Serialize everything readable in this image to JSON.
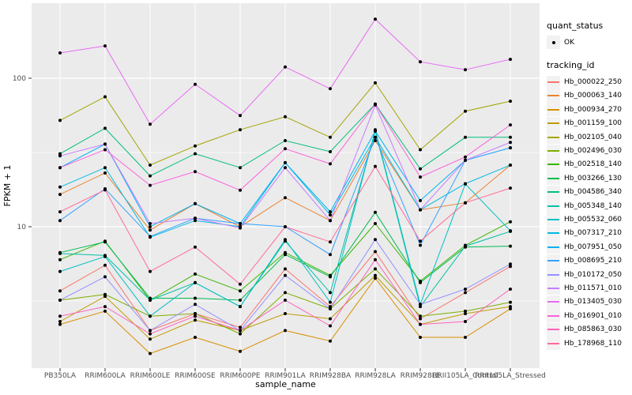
{
  "chart_data": {
    "type": "line",
    "title": "",
    "xlabel": "sample_name",
    "ylabel": "FPKM + 1",
    "y_scale": "log10",
    "ylim": [
      1.12,
      320
    ],
    "y_ticks": [
      {
        "value": 10,
        "label": "10"
      },
      {
        "value": 100,
        "label": "100"
      }
    ],
    "y_minor": [
      3.162,
      31.62
    ],
    "grid": "on",
    "panel_color": "#EBEBEB",
    "grid_color": "#FFFFFF",
    "axis_text_color": "#4D4D4D",
    "point_color": "#000000",
    "legend_position": "right",
    "categories": [
      "PB350LA",
      "RRIM600LA",
      "RRIM600LE",
      "RRIM600SE",
      "RRIM600PE",
      "RRIM901LA",
      "RRIM928BA",
      "RRIM928LA",
      "RRIM928LE",
      "RRII105LA_Control",
      "RRII105LA_Stressed"
    ],
    "legend": {
      "quant_status": {
        "title": "quant_status",
        "items": [
          {
            "label": "OK"
          }
        ]
      },
      "tracking_id": {
        "title": "tracking_id"
      }
    },
    "series": [
      {
        "name": "Hb_000022_250",
        "color": "#F8766D",
        "values": [
          3.7,
          5.5,
          2.0,
          2.6,
          2.1,
          5.2,
          2.9,
          6.8,
          2.4,
          3.6,
          5.4
        ]
      },
      {
        "name": "Hb_000063_140",
        "color": "#EA8331",
        "values": [
          16.5,
          23,
          9.5,
          14.3,
          10,
          15.7,
          11,
          38,
          13,
          14.5,
          26
        ]
      },
      {
        "name": "Hb_000934_270",
        "color": "#D89000",
        "values": [
          2.2,
          2.7,
          1.4,
          1.8,
          1.45,
          2.0,
          1.7,
          4.5,
          1.8,
          1.8,
          2.8
        ]
      },
      {
        "name": "Hb_001159_100",
        "color": "#C09B00",
        "values": [
          2.3,
          3.4,
          1.75,
          2.35,
          2.0,
          2.6,
          2.4,
          4.7,
          2.2,
          2.6,
          2.9
        ]
      },
      {
        "name": "Hb_002105_040",
        "color": "#A3A500",
        "values": [
          52,
          75,
          26,
          35,
          45,
          55,
          40,
          93,
          33,
          60,
          70
        ]
      },
      {
        "name": "Hb_002496_030",
        "color": "#7CAE00",
        "values": [
          3.2,
          3.5,
          2.5,
          2.6,
          1.9,
          3.6,
          2.8,
          5.2,
          2.5,
          2.7,
          3.1
        ]
      },
      {
        "name": "Hb_002518_140",
        "color": "#39B600",
        "values": [
          6.0,
          8.0,
          3.2,
          4.8,
          3.7,
          6.7,
          4.7,
          10.5,
          4.3,
          7.5,
          10.8
        ]
      },
      {
        "name": "Hb_003266_130",
        "color": "#00BB4E",
        "values": [
          6.7,
          7.9,
          3.3,
          3.3,
          3.2,
          6.5,
          4.6,
          12.5,
          4.2,
          7.3,
          7.4
        ]
      },
      {
        "name": "Hb_004586_340",
        "color": "#00BF7D",
        "values": [
          31,
          46,
          22,
          31,
          25,
          38,
          32,
          67,
          24.5,
          40,
          40
        ]
      },
      {
        "name": "Hb_005348_140",
        "color": "#00C1A3",
        "values": [
          6.6,
          6.4,
          3.2,
          4.2,
          2.9,
          8.0,
          3.6,
          44,
          2.9,
          7.4,
          9.3
        ]
      },
      {
        "name": "Hb_005532_060",
        "color": "#00BFC4",
        "values": [
          5.0,
          6.3,
          2.5,
          4.2,
          2.9,
          8.2,
          3.1,
          45,
          3.0,
          19.4,
          9.4
        ]
      },
      {
        "name": "Hb_007317_210",
        "color": "#00BAE0",
        "values": [
          18.5,
          25,
          8.5,
          11,
          10,
          27,
          12,
          40,
          13,
          19.5,
          26
        ]
      },
      {
        "name": "Hb_007951_050",
        "color": "#00B0F6",
        "values": [
          25,
          36,
          10,
          14.3,
          10.5,
          27,
          12.6,
          44,
          15,
          28,
          34
        ]
      },
      {
        "name": "Hb_008695_210",
        "color": "#35A2FF",
        "values": [
          11,
          18,
          8.6,
          11.4,
          10.5,
          10,
          6.5,
          40,
          7.5,
          28,
          34
        ]
      },
      {
        "name": "Hb_010172_050",
        "color": "#9590FF",
        "values": [
          3.2,
          4.6,
          2.0,
          3.0,
          2.0,
          4.7,
          2.8,
          8.2,
          3.0,
          3.8,
          5.6
        ]
      },
      {
        "name": "Hb_011571_010",
        "color": "#C77CFF",
        "values": [
          30,
          36,
          10.5,
          11.4,
          9.8,
          25,
          11,
          66,
          13,
          28,
          37
        ]
      },
      {
        "name": "Hb_013405_030",
        "color": "#E76BF3",
        "values": [
          148,
          165,
          49,
          91,
          56,
          119,
          85,
          250,
          129,
          114,
          134
        ]
      },
      {
        "name": "Hb_016901_010",
        "color": "#FA62DB",
        "values": [
          25,
          33,
          19,
          23.5,
          17.6,
          33.5,
          26.5,
          67,
          21.6,
          29.5,
          48.5
        ]
      },
      {
        "name": "Hb_085863_030",
        "color": "#FF62BC",
        "values": [
          2.5,
          2.9,
          1.9,
          2.5,
          2.0,
          3.2,
          2.15,
          6.0,
          2.2,
          2.3,
          3.8
        ]
      },
      {
        "name": "Hb_178968_110",
        "color": "#FF6A98",
        "values": [
          12.6,
          17.7,
          5.0,
          7.3,
          4.1,
          10,
          7.9,
          25.5,
          8.0,
          14.5,
          18.2
        ]
      }
    ]
  }
}
